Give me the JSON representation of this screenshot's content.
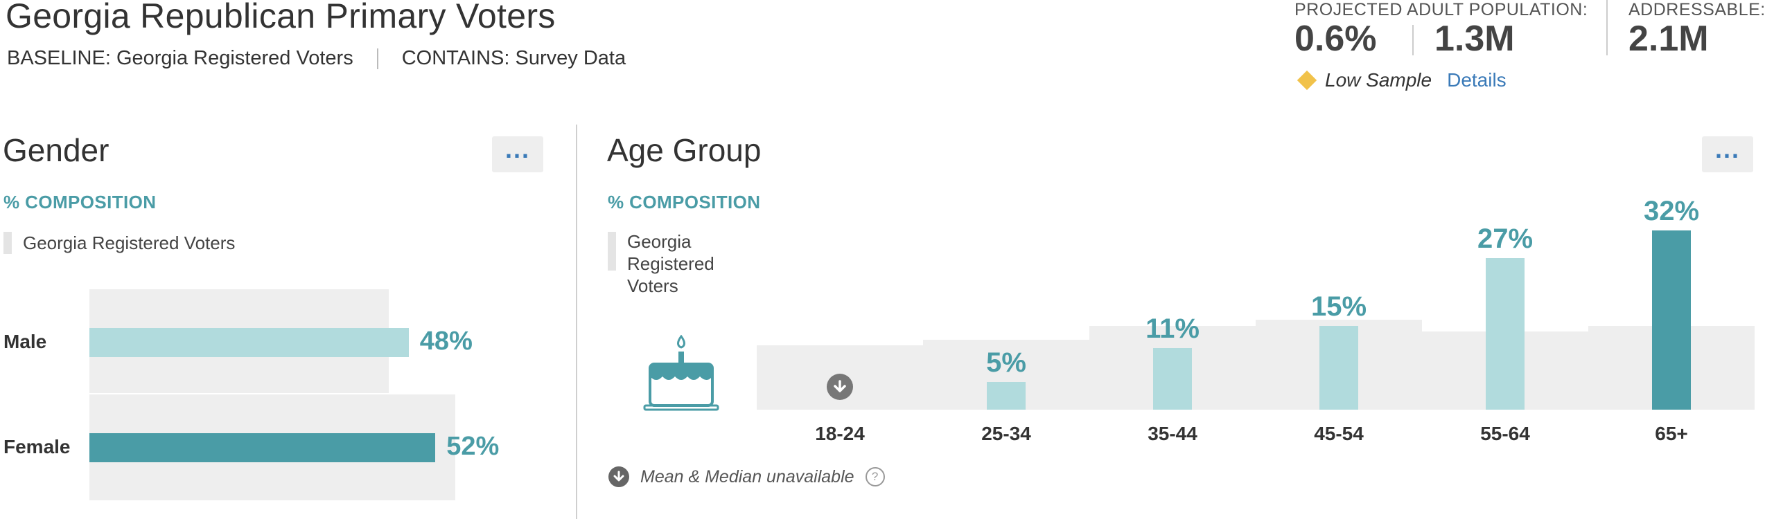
{
  "header": {
    "title": "Georgia Republican Primary Voters",
    "baseline": "BASELINE: Georgia Registered Voters",
    "contains": "CONTAINS: Survey Data",
    "projected_label": "PROJECTED ADULT POPULATION:",
    "projected_pct": "0.6%",
    "projected_count": "1.3M",
    "addressable_label": "ADDRESSABLE:",
    "addressable_value": "2.1M",
    "low_sample": "Low Sample",
    "details_link": "Details",
    "low_sample_color": "#f1c24a"
  },
  "colors": {
    "accent": "#4a9ca6",
    "light_bar": "#b1dbdd",
    "baseline_gray": "#eeeeee",
    "link": "#3a7ab8"
  },
  "gender_panel": {
    "title": "Gender",
    "composition_label": "% COMPOSITION",
    "legend": "Georgia Registered Voters",
    "more_icon": "ellipsis-icon"
  },
  "age_panel": {
    "title": "Age Group",
    "composition_label": "% COMPOSITION",
    "legend": "Georgia Registered Voters",
    "more_icon": "ellipsis-icon",
    "category_icon": "birthday-cake-icon",
    "footnote": "Mean & Median unavailable"
  },
  "chart_data": [
    {
      "type": "bar",
      "orientation": "horizontal",
      "title": "Gender",
      "categories": [
        "Male",
        "Female"
      ],
      "series": [
        {
          "name": "Georgia Republican Primary Voters",
          "values": [
            48,
            52
          ],
          "labels": [
            "48%",
            "52%"
          ]
        },
        {
          "name": "Georgia Registered Voters",
          "values": [
            45,
            55
          ]
        }
      ],
      "highlight_index": 1,
      "xlim": [
        0,
        60
      ]
    },
    {
      "type": "bar",
      "orientation": "vertical",
      "title": "Age Group",
      "categories": [
        "18-24",
        "25-34",
        "35-44",
        "45-54",
        "55-64",
        "65+"
      ],
      "series": [
        {
          "name": "Georgia Republican Primary Voters",
          "values": [
            null,
            5,
            11,
            15,
            27,
            32
          ],
          "labels": [
            "",
            "5%",
            "11%",
            "15%",
            "27%",
            "32%"
          ]
        },
        {
          "name": "Georgia Registered Voters",
          "values": [
            11.5,
            12.5,
            15,
            16,
            14,
            15
          ]
        }
      ],
      "highlight_index": 5,
      "ylim": [
        0,
        34
      ]
    }
  ]
}
